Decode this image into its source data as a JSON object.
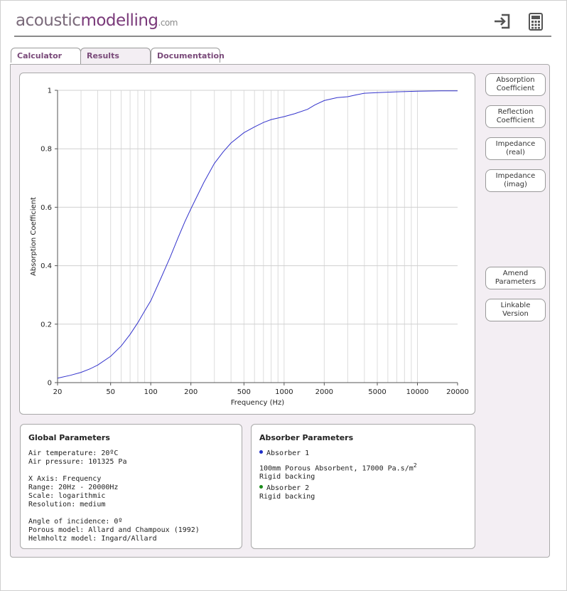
{
  "brand": {
    "part1": "acoustic",
    "part2": "modelling",
    "part3": ".com"
  },
  "header_icons": [
    "sign-in-icon",
    "calculator-icon"
  ],
  "tabs": [
    {
      "label": "Calculator",
      "active": false
    },
    {
      "label": "Results",
      "active": true
    },
    {
      "label": "Documentation",
      "active": false
    }
  ],
  "side_buttons": {
    "absorption": "Absorption\nCoefficient",
    "reflection": "Reflection\nCoefficient",
    "impedance_real": "Impedance\n(real)",
    "impedance_imag": "Impedance\n(imag)",
    "amend": "Amend\nParameters",
    "linkable": "Linkable\nVersion"
  },
  "global_params": {
    "title": "Global Parameters",
    "air_temp": "Air temperature: 20ºC",
    "air_pressure": "Air pressure: 101325 Pa",
    "x_axis": "X Axis: Frequency",
    "range": "Range: 20Hz - 20000Hz",
    "scale": "Scale: logarithmic",
    "resolution": "Resolution: medium",
    "angle": "Angle of incidence: 0º",
    "porous_model": "Porous model: Allard and Champoux (1992)",
    "helmholtz_model": "Helmholtz model: Ingard/Allard"
  },
  "absorber_params": {
    "title": "Absorber Parameters",
    "absorber1_label": "Absorber 1",
    "absorber1_color": "#1f2fc8",
    "absorber1_desc": "100mm Porous Absorbent, 17000 Pa.s/m",
    "absorber1_desc_sup": "2",
    "absorber1_backing": "Rigid backing",
    "absorber2_label": "Absorber 2",
    "absorber2_color": "#1a8a1a",
    "absorber2_backing": "Rigid backing"
  },
  "chart_data": {
    "type": "line",
    "xlabel": "Frequency (Hz)",
    "ylabel": "Absorption Coefficient",
    "xscale": "log",
    "xlim": [
      20,
      20000
    ],
    "ylim": [
      0,
      1
    ],
    "x_ticks": [
      20,
      50,
      100,
      200,
      500,
      1000,
      2000,
      5000,
      10000,
      20000
    ],
    "y_ticks": [
      0,
      0.2,
      0.4,
      0.6,
      0.8,
      1
    ],
    "grid": true,
    "series": [
      {
        "color": "#3333cc",
        "x": [
          20,
          25,
          30,
          35,
          40,
          50,
          60,
          70,
          80,
          90,
          100,
          120,
          140,
          160,
          180,
          200,
          250,
          300,
          350,
          400,
          500,
          600,
          700,
          800,
          1000,
          1200,
          1500,
          1700,
          2000,
          2500,
          3000,
          3500,
          4000,
          5000,
          7000,
          10000,
          15000,
          20000
        ],
        "y": [
          0.015,
          0.025,
          0.035,
          0.047,
          0.06,
          0.09,
          0.125,
          0.165,
          0.205,
          0.245,
          0.28,
          0.36,
          0.43,
          0.495,
          0.55,
          0.595,
          0.685,
          0.75,
          0.79,
          0.82,
          0.855,
          0.875,
          0.89,
          0.9,
          0.91,
          0.92,
          0.935,
          0.95,
          0.965,
          0.975,
          0.978,
          0.985,
          0.99,
          0.992,
          0.995,
          0.997,
          0.998,
          0.998
        ]
      }
    ]
  }
}
